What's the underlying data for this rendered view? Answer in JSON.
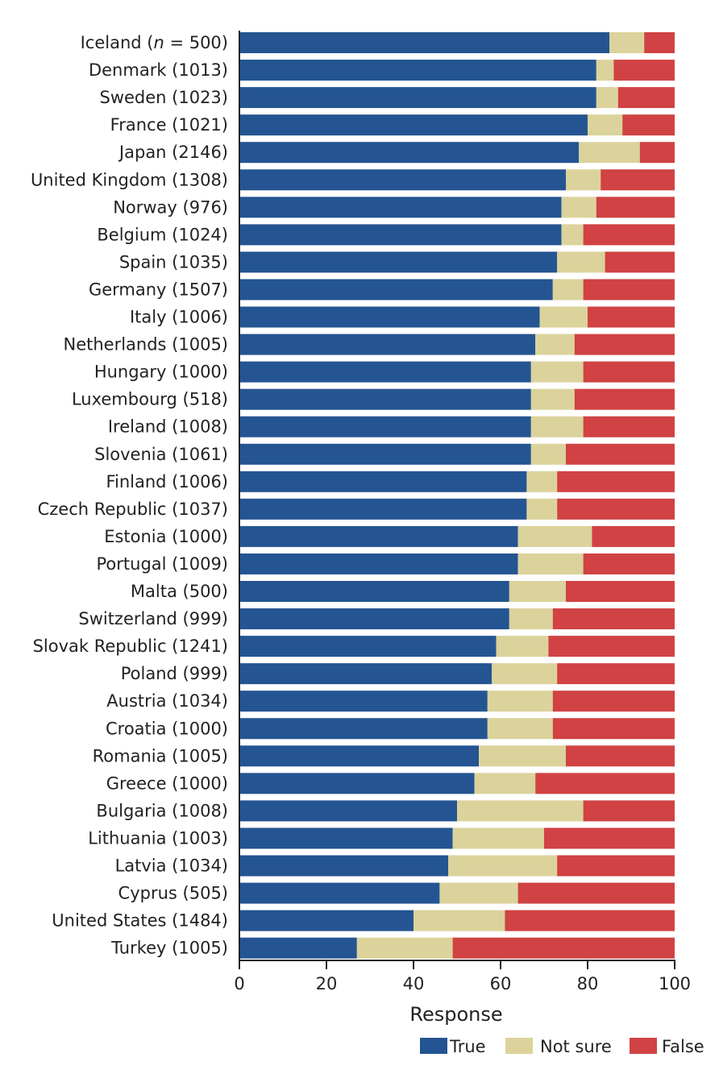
{
  "chart_data": {
    "type": "bar",
    "orientation": "horizontal",
    "stacked": true,
    "categories": [
      "Iceland (n = 500)",
      "Denmark (1013)",
      "Sweden (1023)",
      "France (1021)",
      "Japan (2146)",
      "United Kingdom (1308)",
      "Norway (976)",
      "Belgium (1024)",
      "Spain (1035)",
      "Germany (1507)",
      "Italy (1006)",
      "Netherlands (1005)",
      "Hungary (1000)",
      "Luxembourg (518)",
      "Ireland (1008)",
      "Slovenia (1061)",
      "Finland (1006)",
      "Czech Republic (1037)",
      "Estonia (1000)",
      "Portugal (1009)",
      "Malta (500)",
      "Switzerland (999)",
      "Slovak Republic (1241)",
      "Poland (999)",
      "Austria (1034)",
      "Croatia (1000)",
      "Romania (1005)",
      "Greece (1000)",
      "Bulgaria (1008)",
      "Lithuania (1003)",
      "Latvia (1034)",
      "Cyprus (505)",
      "United States (1484)",
      "Turkey (1005)"
    ],
    "series": [
      {
        "name": "True",
        "color": "#245592",
        "values": [
          85,
          82,
          82,
          80,
          78,
          75,
          74,
          74,
          73,
          72,
          69,
          68,
          67,
          67,
          67,
          67,
          66,
          66,
          64,
          64,
          62,
          62,
          59,
          58,
          57,
          57,
          55,
          54,
          50,
          49,
          48,
          46,
          40,
          27
        ]
      },
      {
        "name": "Not sure",
        "color": "#dbd39b",
        "values": [
          8,
          4,
          5,
          8,
          14,
          8,
          8,
          5,
          11,
          7,
          11,
          9,
          12,
          10,
          12,
          8,
          7,
          7,
          17,
          15,
          13,
          10,
          12,
          15,
          15,
          15,
          20,
          14,
          29,
          21,
          25,
          18,
          21,
          22
        ]
      },
      {
        "name": "False",
        "color": "#d04243",
        "values": [
          7,
          14,
          13,
          12,
          8,
          17,
          18,
          21,
          16,
          21,
          20,
          23,
          21,
          23,
          21,
          25,
          27,
          27,
          19,
          21,
          25,
          28,
          29,
          27,
          28,
          28,
          25,
          32,
          21,
          30,
          27,
          36,
          39,
          51
        ]
      }
    ],
    "xlim": [
      0,
      100
    ],
    "xticks": [
      0,
      20,
      40,
      60,
      80,
      100
    ],
    "xlabel": "Response",
    "ylabel": "",
    "title": "",
    "legend": {
      "position": "bottom-right",
      "entries": [
        "True",
        "Not sure",
        "False"
      ]
    },
    "grid": false
  }
}
